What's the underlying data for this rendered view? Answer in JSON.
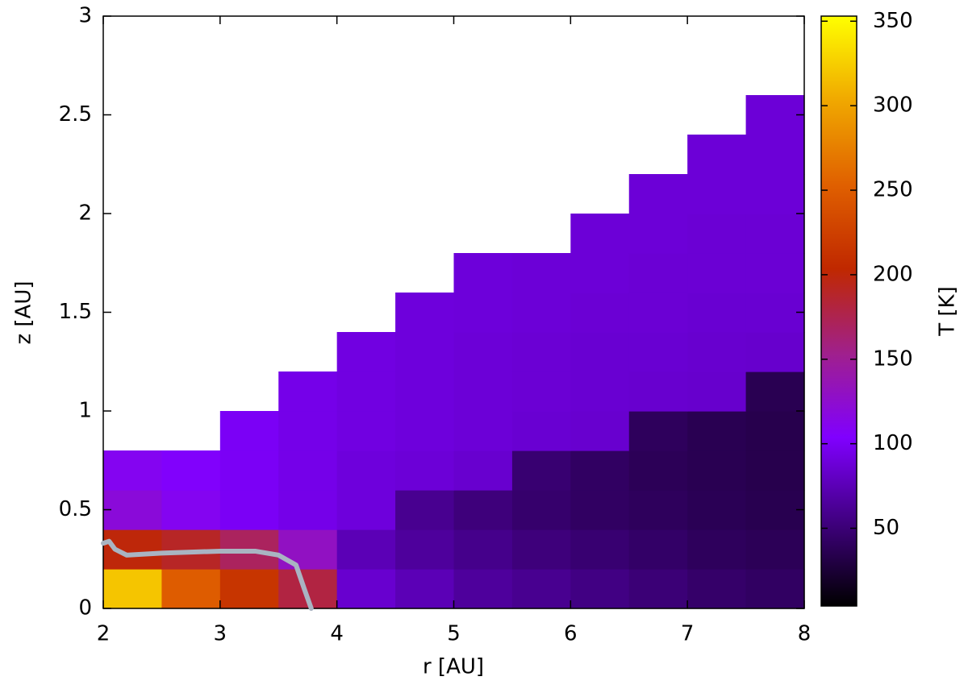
{
  "chart_data": {
    "type": "heatmap",
    "xlabel": "r [AU]",
    "ylabel": "z [AU]",
    "colorbar_label": "T [K]",
    "xlim": [
      2,
      8
    ],
    "ylim": [
      0,
      3
    ],
    "xticks": [
      2,
      3,
      4,
      5,
      6,
      7,
      8
    ],
    "yticks": [
      0,
      0.5,
      1,
      1.5,
      2,
      2.5,
      3
    ],
    "clim": [
      4,
      353
    ],
    "cticks": [
      50,
      100,
      150,
      200,
      250,
      300,
      350
    ],
    "colormap": [
      "#000000",
      "#400080",
      "#8000ff",
      "#a0208c",
      "#c02800",
      "#e06000",
      "#f0a800",
      "#ffff00"
    ],
    "x": [
      2.25,
      2.75,
      3.25,
      3.75,
      4.25,
      4.75,
      5.25,
      5.75,
      6.25,
      6.75,
      7.25,
      7.75
    ],
    "y": [
      0.1,
      0.3,
      0.5,
      0.7,
      0.9,
      1.1,
      1.3,
      1.5,
      1.7,
      1.9,
      2.1,
      2.3,
      2.5
    ],
    "values": [
      [
        320,
        250,
        215,
        180,
        85,
        75,
        65,
        60,
        55,
        50,
        45,
        42
      ],
      [
        200,
        190,
        170,
        130,
        75,
        65,
        58,
        52,
        48,
        44,
        40,
        38
      ],
      [
        120,
        110,
        100,
        95,
        90,
        60,
        52,
        46,
        42,
        40,
        37,
        35
      ],
      [
        110,
        105,
        100,
        95,
        90,
        88,
        85,
        48,
        42,
        38,
        36,
        34
      ],
      [
        null,
        null,
        100,
        95,
        92,
        90,
        88,
        86,
        85,
        40,
        36,
        34
      ],
      [
        null,
        null,
        null,
        95,
        92,
        90,
        88,
        87,
        86,
        85,
        84,
        36
      ],
      [
        null,
        null,
        null,
        null,
        92,
        90,
        88,
        87,
        86,
        86,
        85,
        84
      ],
      [
        null,
        null,
        null,
        null,
        null,
        90,
        89,
        88,
        87,
        87,
        86,
        86
      ],
      [
        null,
        null,
        null,
        null,
        null,
        null,
        89,
        88,
        88,
        87,
        87,
        87
      ],
      [
        null,
        null,
        null,
        null,
        null,
        null,
        null,
        null,
        88,
        88,
        87,
        87
      ],
      [
        null,
        null,
        null,
        null,
        null,
        null,
        null,
        null,
        null,
        88,
        88,
        88
      ],
      [
        null,
        null,
        null,
        null,
        null,
        null,
        null,
        null,
        null,
        null,
        88,
        88
      ],
      [
        null,
        null,
        null,
        null,
        null,
        null,
        null,
        null,
        null,
        null,
        null,
        88
      ]
    ],
    "contour": {
      "color": "#a9b4c2",
      "x": [
        2,
        2.05,
        2.1,
        2.2,
        2.5,
        3,
        3.3,
        3.5,
        3.65,
        3.72,
        3.78
      ],
      "y": [
        0.33,
        0.34,
        0.3,
        0.27,
        0.28,
        0.29,
        0.29,
        0.27,
        0.22,
        0.1,
        0
      ]
    }
  }
}
